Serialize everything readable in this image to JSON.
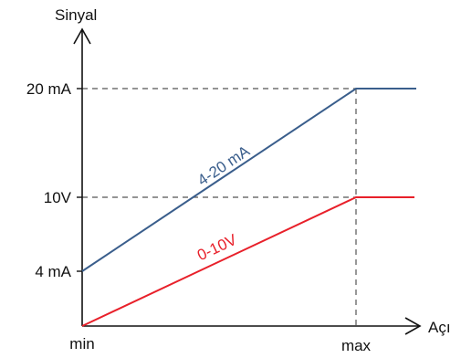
{
  "chart_data": {
    "type": "line",
    "ylabel": "Sinyal",
    "xlabel": "Açı",
    "x_ticks": [
      "min",
      "max"
    ],
    "y_ticks": [
      "20 mA",
      "10V",
      "4 mA"
    ],
    "series": [
      {
        "name": "4-20 mA",
        "color": "#3a5e8c",
        "points": [
          [
            "min",
            "4 mA"
          ],
          [
            "max",
            "20 mA"
          ],
          [
            "beyond max",
            "20 mA"
          ]
        ]
      },
      {
        "name": "0-10V",
        "color": "#e8202a",
        "points": [
          [
            "min",
            "0"
          ],
          [
            "max",
            "10V"
          ],
          [
            "beyond max",
            "10V"
          ]
        ]
      }
    ],
    "reference_lines": "dashed",
    "grid": false,
    "legend": "none (series labelled inline)"
  }
}
